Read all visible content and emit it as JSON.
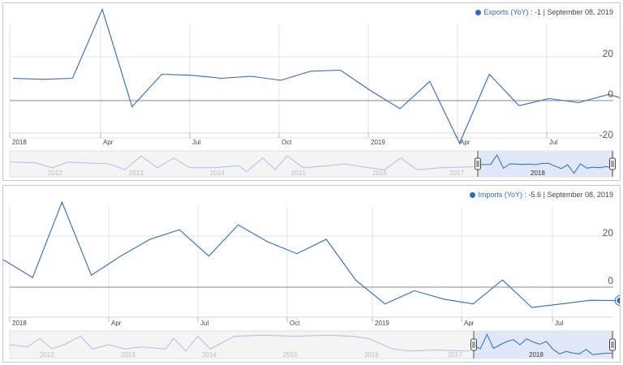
{
  "charts": [
    {
      "legend": {
        "series": "Exports (YoY)",
        "sep": ":",
        "value": "-1",
        "date": "September 08, 2019"
      },
      "navigator_years": [
        "2012",
        "2013",
        "2014",
        "2015",
        "2016",
        "2017",
        "2018"
      ]
    },
    {
      "legend": {
        "series": "Imports (YoY)",
        "sep": ":",
        "value": "-5.6",
        "date": "September 08, 2019"
      },
      "navigator_years": [
        "2012",
        "2013",
        "2014",
        "2015",
        "2016",
        "2017",
        "2018"
      ]
    }
  ],
  "chart_data": [
    {
      "type": "line",
      "series": [
        {
          "name": "Exports (YoY)",
          "x": [
            "2017-12",
            "2018-01",
            "2018-02",
            "2018-03",
            "2018-04",
            "2018-05",
            "2018-06",
            "2018-07",
            "2018-08",
            "2018-09",
            "2018-10",
            "2018-11",
            "2018-12",
            "2019-01",
            "2019-02",
            "2019-03",
            "2019-04",
            "2019-05",
            "2019-06",
            "2019-07",
            "2019-08",
            "2019-09"
          ],
          "values": [
            11,
            10.5,
            11,
            45,
            -3,
            13,
            12.5,
            11,
            12,
            10,
            14.5,
            15,
            5,
            -4,
            9.5,
            -21,
            13,
            -2.5,
            1,
            -1,
            3,
            -1
          ]
        }
      ],
      "ytick_labels": [
        "20",
        "0",
        "-20"
      ],
      "xtick_labels": [
        "2018",
        "Apr",
        "Jul",
        "Oct",
        "2019",
        "Apr",
        "Jul"
      ],
      "ylim": [
        -22,
        48
      ],
      "grid": true
    },
    {
      "type": "line",
      "series": [
        {
          "name": "Imports (YoY)",
          "x": [
            "2017-12",
            "2018-01",
            "2018-02",
            "2018-03",
            "2018-04",
            "2018-05",
            "2018-06",
            "2018-07",
            "2018-08",
            "2018-09",
            "2018-10",
            "2018-11",
            "2018-12",
            "2019-01",
            "2019-02",
            "2019-03",
            "2019-04",
            "2019-05",
            "2019-06",
            "2019-07",
            "2019-08",
            "2019-09"
          ],
          "values": [
            11.5,
            4,
            35.5,
            5,
            13,
            20,
            24,
            13,
            26,
            19,
            14,
            20,
            3,
            -7,
            -1.5,
            -5,
            -7,
            3,
            -8.5,
            -7,
            -5.5,
            -5.6
          ]
        }
      ],
      "ytick_labels": [
        "20",
        "0"
      ],
      "xtick_labels": [
        "2018",
        "Apr",
        "Jul",
        "Oct",
        "2019",
        "Apr",
        "Jul"
      ],
      "ylim": [
        -10,
        36
      ],
      "grid": true
    }
  ],
  "colors": {
    "line": "#3366cc",
    "grid": "#e3e3e3",
    "navigator_bg": "#f4f4f4",
    "navigator_window": "#dfe8f7"
  }
}
